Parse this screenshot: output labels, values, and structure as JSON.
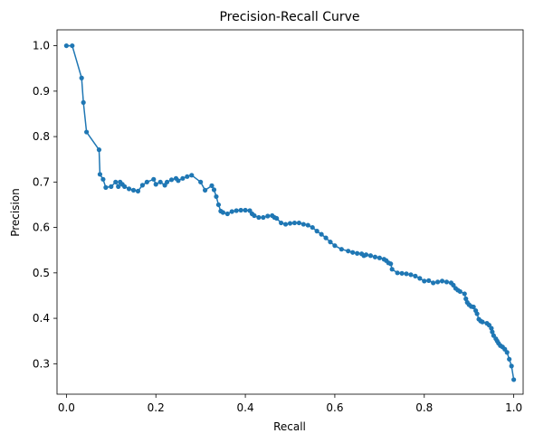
{
  "chart_data": {
    "type": "line",
    "title": "Precision-Recall Curve",
    "xlabel": "Recall",
    "ylabel": "Precision",
    "xlim": [
      -0.021,
      1.021
    ],
    "ylim": [
      0.233,
      1.035
    ],
    "xticks": [
      0.0,
      0.2,
      0.4,
      0.6,
      0.8,
      1.0
    ],
    "xtick_labels": [
      "0.0",
      "0.2",
      "0.4",
      "0.6",
      "0.8",
      "1.0"
    ],
    "yticks": [
      0.3,
      0.4,
      0.5,
      0.6,
      0.7,
      0.8,
      0.9,
      1.0
    ],
    "ytick_labels": [
      "0.3",
      "0.4",
      "0.5",
      "0.6",
      "0.7",
      "0.8",
      "0.9",
      "1.0"
    ],
    "grid": false,
    "legend": "none",
    "color": "#1f77b4",
    "marker": "circle",
    "series": [
      {
        "x": [
          0.0,
          0.013,
          0.034,
          0.038,
          0.045,
          0.073,
          0.075,
          0.082,
          0.088,
          0.1,
          0.11,
          0.116,
          0.12,
          0.125,
          0.13,
          0.14,
          0.15,
          0.16,
          0.17,
          0.18,
          0.195,
          0.2,
          0.21,
          0.22,
          0.225,
          0.235,
          0.245,
          0.25,
          0.26,
          0.27,
          0.28,
          0.3,
          0.31,
          0.325,
          0.33,
          0.335,
          0.34,
          0.345,
          0.35,
          0.36,
          0.37,
          0.38,
          0.39,
          0.4,
          0.41,
          0.415,
          0.42,
          0.43,
          0.44,
          0.45,
          0.46,
          0.465,
          0.47,
          0.48,
          0.49,
          0.5,
          0.51,
          0.52,
          0.53,
          0.54,
          0.55,
          0.56,
          0.57,
          0.58,
          0.59,
          0.6,
          0.615,
          0.63,
          0.64,
          0.65,
          0.66,
          0.665,
          0.67,
          0.68,
          0.69,
          0.7,
          0.71,
          0.715,
          0.72,
          0.725,
          0.728,
          0.74,
          0.75,
          0.76,
          0.77,
          0.78,
          0.79,
          0.8,
          0.81,
          0.82,
          0.83,
          0.84,
          0.85,
          0.86,
          0.865,
          0.87,
          0.875,
          0.88,
          0.89,
          0.893,
          0.896,
          0.9,
          0.905,
          0.91,
          0.915,
          0.918,
          0.922,
          0.926,
          0.93,
          0.94,
          0.945,
          0.95,
          0.952,
          0.955,
          0.96,
          0.963,
          0.966,
          0.97,
          0.975,
          0.98,
          0.985,
          0.99,
          0.995,
          1.0
        ],
        "y": [
          1.0,
          1.0,
          0.929,
          0.875,
          0.81,
          0.771,
          0.717,
          0.706,
          0.688,
          0.69,
          0.7,
          0.69,
          0.7,
          0.695,
          0.69,
          0.685,
          0.682,
          0.68,
          0.693,
          0.7,
          0.706,
          0.695,
          0.7,
          0.693,
          0.7,
          0.705,
          0.708,
          0.703,
          0.708,
          0.712,
          0.715,
          0.7,
          0.682,
          0.692,
          0.683,
          0.668,
          0.65,
          0.636,
          0.633,
          0.63,
          0.635,
          0.637,
          0.638,
          0.638,
          0.637,
          0.63,
          0.626,
          0.622,
          0.622,
          0.625,
          0.626,
          0.622,
          0.62,
          0.61,
          0.607,
          0.609,
          0.61,
          0.61,
          0.607,
          0.605,
          0.6,
          0.592,
          0.585,
          0.577,
          0.568,
          0.56,
          0.552,
          0.548,
          0.545,
          0.543,
          0.542,
          0.538,
          0.54,
          0.538,
          0.535,
          0.533,
          0.53,
          0.527,
          0.522,
          0.52,
          0.508,
          0.5,
          0.499,
          0.498,
          0.496,
          0.493,
          0.488,
          0.482,
          0.483,
          0.478,
          0.48,
          0.482,
          0.48,
          0.478,
          0.473,
          0.466,
          0.462,
          0.459,
          0.454,
          0.443,
          0.435,
          0.43,
          0.426,
          0.425,
          0.417,
          0.41,
          0.398,
          0.394,
          0.392,
          0.389,
          0.385,
          0.378,
          0.37,
          0.362,
          0.355,
          0.35,
          0.345,
          0.34,
          0.337,
          0.332,
          0.325,
          0.31,
          0.295,
          0.265
        ]
      }
    ]
  }
}
